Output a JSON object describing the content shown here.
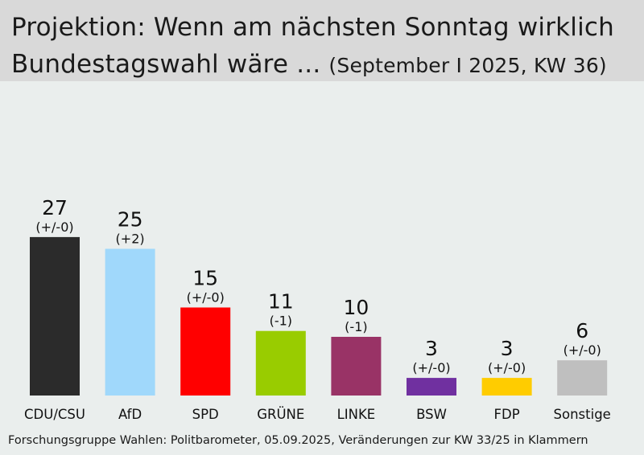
{
  "header": {
    "title_line1": "Projektion: Wenn am nächsten Sonntag wirklich",
    "title_line2": "Bundestagswahl wäre ...",
    "subtitle": "(September I 2025, KW 36)"
  },
  "source": "Forschungsgruppe Wahlen: Politbarometer, 05.09.2025, Veränderungen zur KW 33/25 in Klammern",
  "chart_data": {
    "type": "bar",
    "title": "Projektion: Wenn am nächsten Sonntag wirklich Bundestagswahl wäre ...",
    "subtitle": "(September I 2025, KW 36)",
    "categories": [
      "CDU/CSU",
      "AfD",
      "SPD",
      "GRÜNE",
      "LINKE",
      "BSW",
      "FDP",
      "Sonstige"
    ],
    "values": [
      27,
      25,
      15,
      11,
      10,
      3,
      3,
      6
    ],
    "changes": [
      "(+/-0)",
      "(+2)",
      "(+/-0)",
      "(-1)",
      "(-1)",
      "(+/-0)",
      "(+/-0)",
      "(+/-0)"
    ],
    "colors": [
      "#2b2b2b",
      "#a0d8fb",
      "#ff0000",
      "#99cc00",
      "#993366",
      "#7030a0",
      "#ffcc00",
      "#bfbfbf"
    ],
    "ylim": [
      0,
      27
    ],
    "xlabel": "",
    "ylabel": "",
    "grid": false,
    "legend": "none"
  }
}
